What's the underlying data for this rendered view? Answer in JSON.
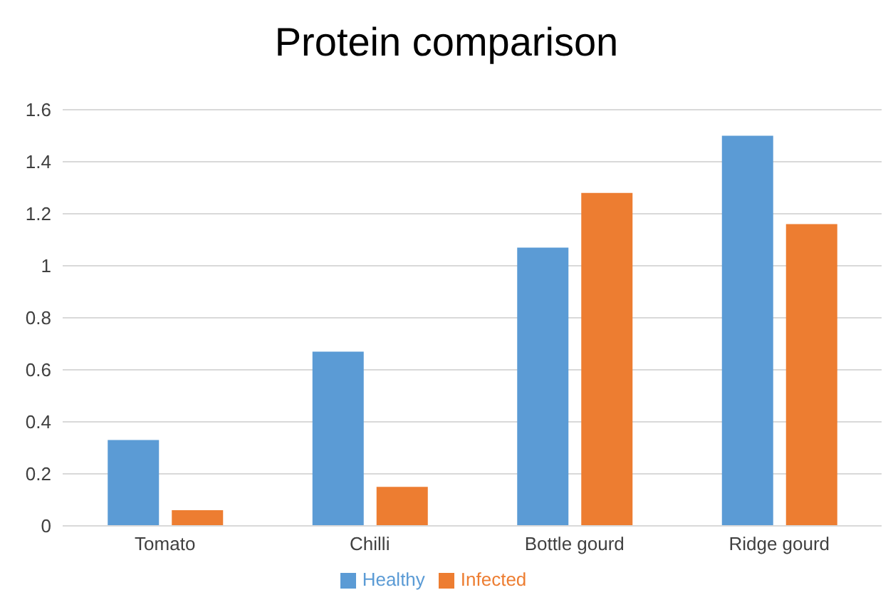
{
  "chart_data": {
    "type": "bar",
    "title": "Protein comparison",
    "categories": [
      "Tomato",
      "Chilli",
      "Bottle gourd",
      "Ridge gourd"
    ],
    "series": [
      {
        "name": "Healthy",
        "color": "#5b9bd5",
        "values": [
          0.33,
          0.67,
          1.07,
          1.5
        ]
      },
      {
        "name": "Infected",
        "color": "#ed7d31",
        "values": [
          0.06,
          0.15,
          1.28,
          1.16
        ]
      }
    ],
    "ylim": [
      0,
      1.6
    ],
    "yticks": [
      0,
      0.2,
      0.4,
      0.6,
      0.8,
      1,
      1.2,
      1.4,
      1.6
    ],
    "grid": "y",
    "legend": "bottom"
  }
}
